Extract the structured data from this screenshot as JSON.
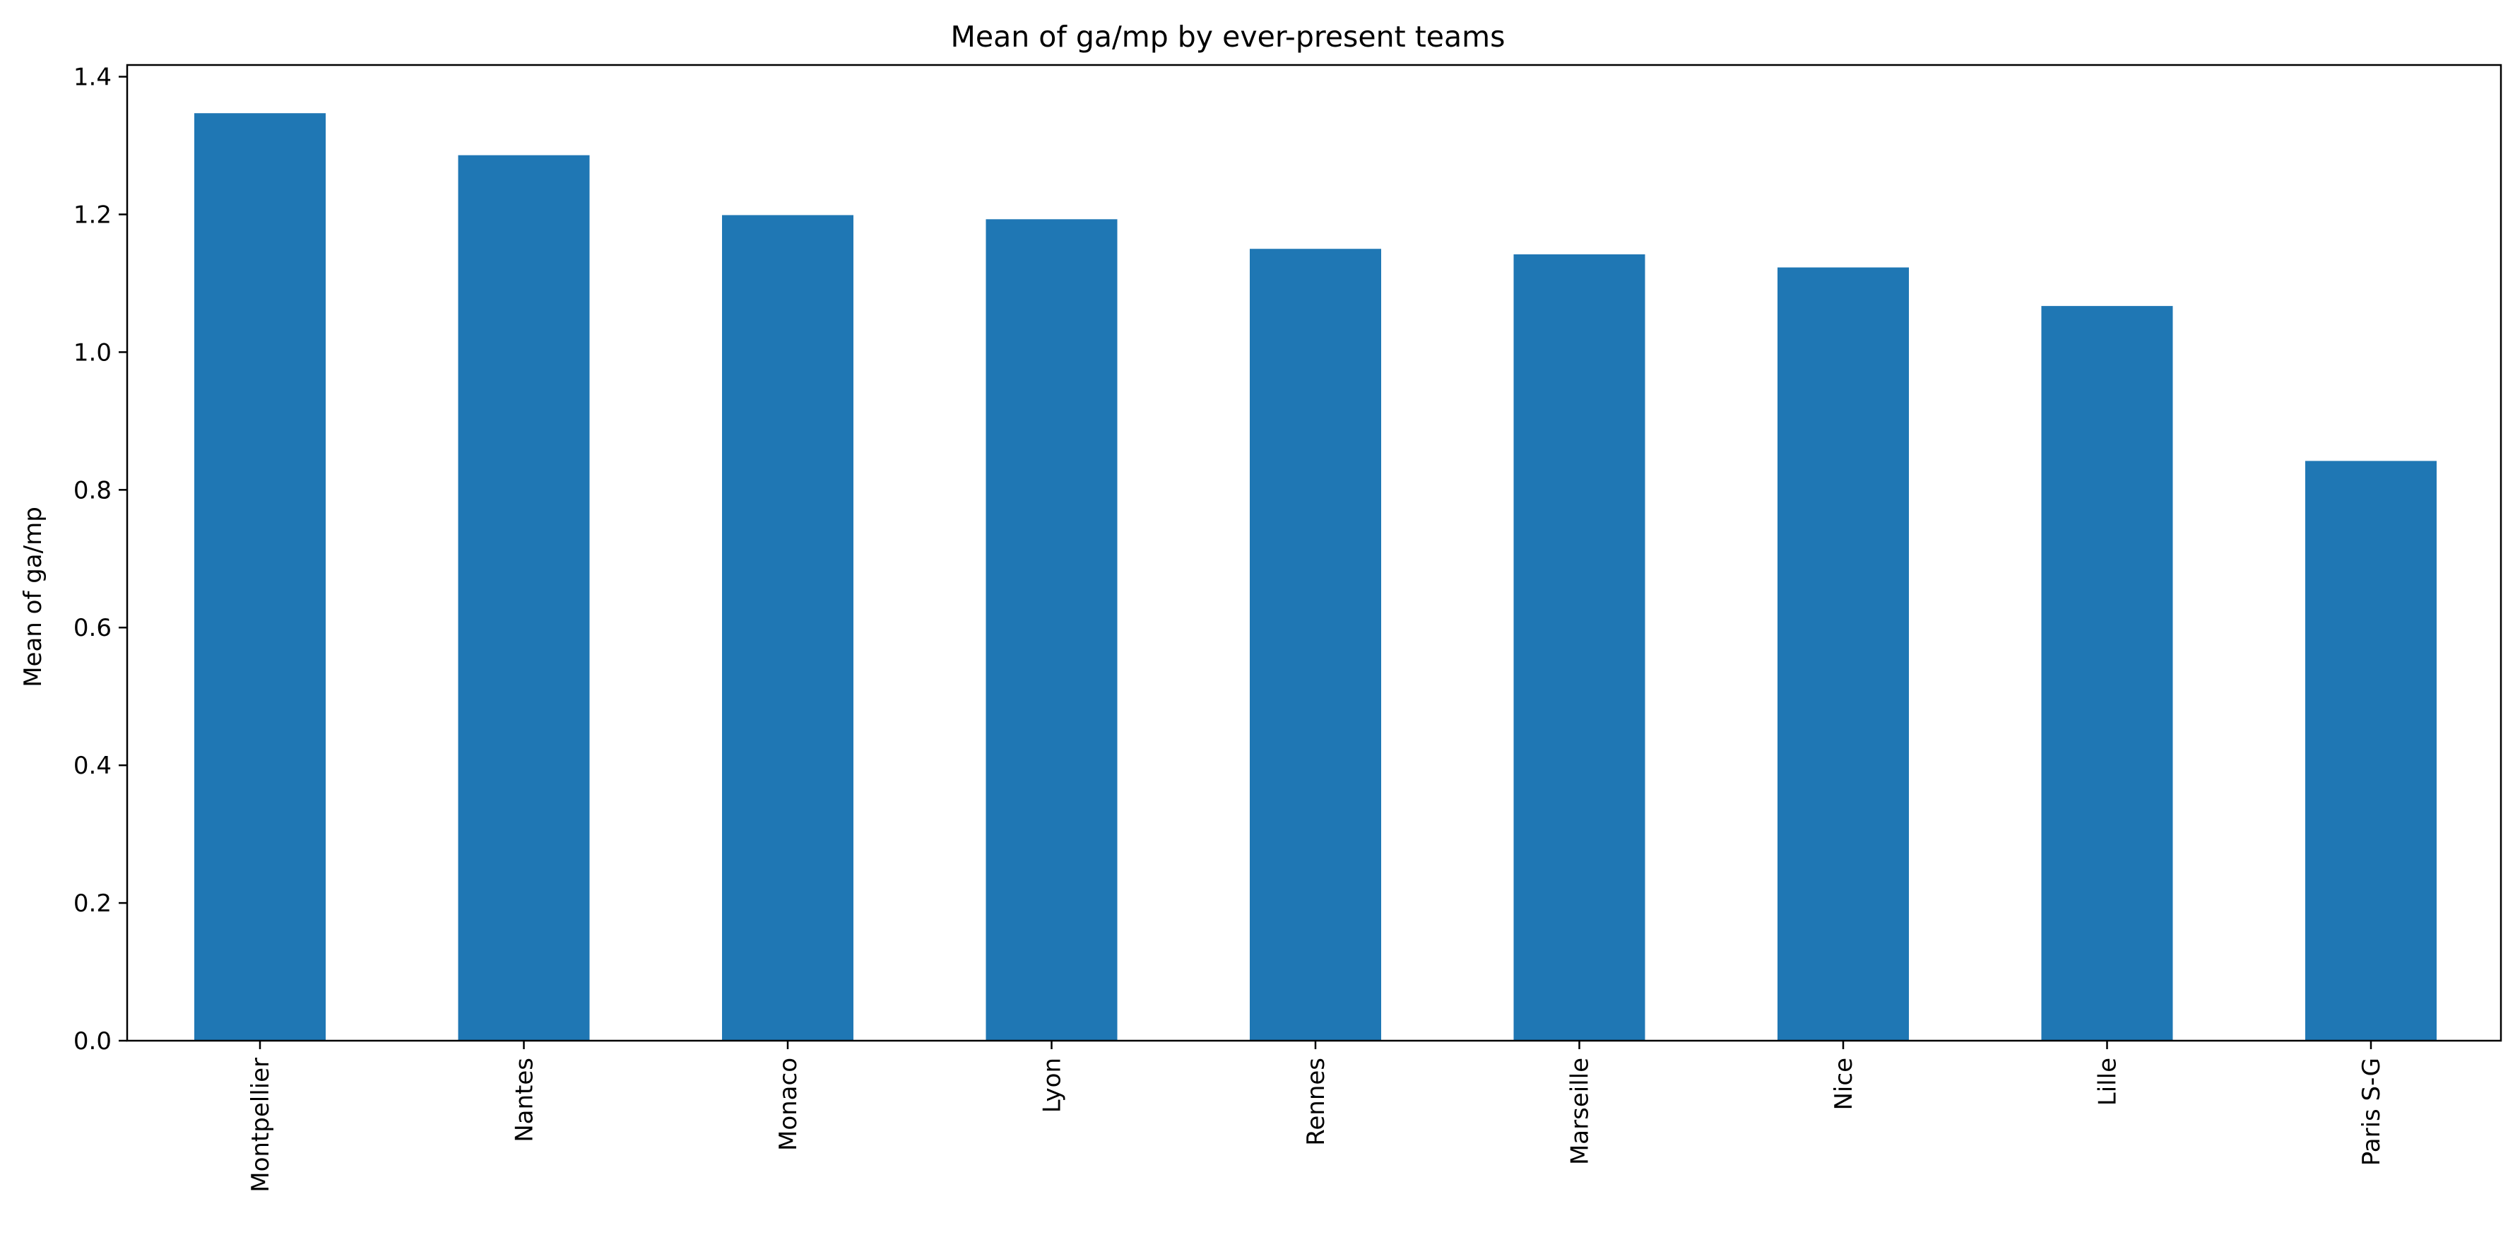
{
  "chart_data": {
    "type": "bar",
    "title": "Mean of ga/mp by ever-present teams",
    "xlabel": "",
    "ylabel": "Mean of ga/mp",
    "categories": [
      "Montpellier",
      "Nantes",
      "Monaco",
      "Lyon",
      "Rennes",
      "Marseille",
      "Nice",
      "Lille",
      "Paris S-G"
    ],
    "values": [
      1.347,
      1.286,
      1.199,
      1.193,
      1.15,
      1.142,
      1.123,
      1.067,
      0.842
    ],
    "ylim": [
      0,
      1.417
    ],
    "yticks": [
      0.0,
      0.2,
      0.4,
      0.6,
      0.8,
      1.0,
      1.2,
      1.4
    ],
    "ytick_labels": [
      "0.0",
      "0.2",
      "0.4",
      "0.6",
      "0.8",
      "1.0",
      "1.2",
      "1.4"
    ],
    "grid": false,
    "legend": "none",
    "bar_color": "#1f77b4"
  }
}
